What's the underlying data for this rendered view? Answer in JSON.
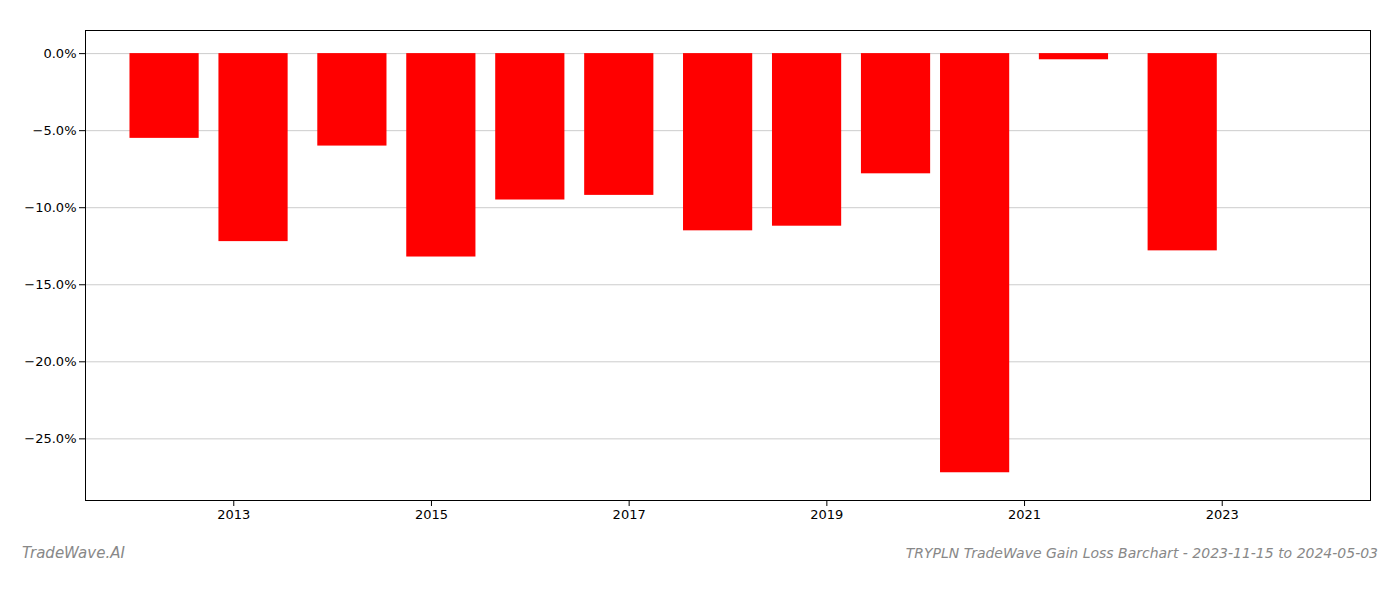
{
  "chart_data": {
    "type": "bar",
    "title": "TRYPLN TradeWave Gain Loss Barchart - 2023-11-15 to 2024-05-03",
    "annotations": [
      "TradeWave.AI"
    ],
    "x": [
      2012.3,
      2013.2,
      2014.2,
      2015.1,
      2016.0,
      2016.9,
      2017.9,
      2018.8,
      2019.7,
      2020.5,
      2021.5,
      2022.6
    ],
    "values": [
      -5.5,
      -12.2,
      -6.0,
      -13.2,
      -9.5,
      -9.2,
      -11.5,
      -11.2,
      -7.8,
      -27.2,
      -0.4,
      -12.8
    ],
    "color": "#ff0000",
    "xlim": [
      2011.5,
      2024.5
    ],
    "xticks": [
      2013,
      2015,
      2017,
      2019,
      2021,
      2023
    ],
    "ylim": [
      -29.0,
      1.5
    ],
    "yticks": [
      {
        "value": 0.0,
        "label": "0.0%"
      },
      {
        "value": -5.0,
        "label": "−5.0%"
      },
      {
        "value": -10.0,
        "label": "−10.0%"
      },
      {
        "value": -15.0,
        "label": "−15.0%"
      },
      {
        "value": -20.0,
        "label": "−20.0%"
      },
      {
        "value": -25.0,
        "label": "−25.0%"
      }
    ],
    "grid": true
  }
}
